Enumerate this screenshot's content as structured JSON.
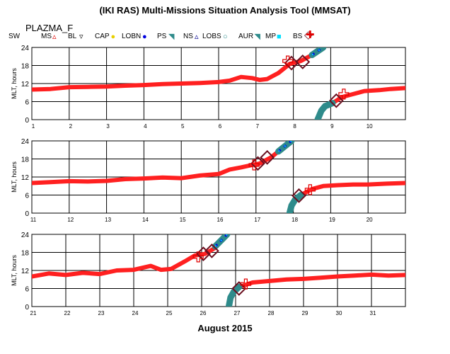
{
  "title": "(IKI RAS) Multi-Missions Situation Analysis Tool (MMSAT)",
  "mission": "PLAZMA_F",
  "xlabel": "August 2015",
  "legend": [
    {
      "label": "SW",
      "icon": "none",
      "color": "#000000"
    },
    {
      "label": "MS",
      "icon": "triangle-icon",
      "color": "#e00000"
    },
    {
      "label": "BL",
      "icon": "triangle-down-icon",
      "color": "#000000"
    },
    {
      "label": "CAP",
      "icon": "dot-icon",
      "color": "#e8d000"
    },
    {
      "label": "LOBN",
      "icon": "dot-icon",
      "color": "#0000e0"
    },
    {
      "label": "PS",
      "icon": "flag-icon",
      "color": "#2e8b8b"
    },
    {
      "label": "NS",
      "icon": "triangle-icon",
      "color": "#000090"
    },
    {
      "label": "LOBS",
      "icon": "circle-icon",
      "color": "#2e8b8b"
    },
    {
      "label": "AUR",
      "icon": "flag-icon",
      "color": "#2e8b8b"
    },
    {
      "label": "MP",
      "icon": "square-icon",
      "color": "#00e0ff"
    },
    {
      "label": "BS",
      "icon": "diamond-icon",
      "color": "#6b1020"
    },
    {
      "label": "",
      "icon": "cross-icon",
      "color": "#e00000"
    }
  ],
  "colors": {
    "sw": "#ff2020",
    "ps": "#2e8b8b",
    "lobn": "#0000e0",
    "mp": "#00e0ff",
    "bs": "#6b1020",
    "cross": "#e00000"
  },
  "chart_data": [
    {
      "type": "scatter",
      "xlim": [
        1,
        11
      ],
      "ylim": [
        0,
        24
      ],
      "ylabel": "MLT, hours",
      "xticks": [
        "1",
        "2",
        "3",
        "4",
        "5",
        "6",
        "7",
        "8",
        "9",
        "10"
      ],
      "yticks": [
        "0",
        "6",
        "12",
        "18",
        "24"
      ],
      "sw_track": [
        [
          1,
          10
        ],
        [
          1.5,
          10.2
        ],
        [
          2,
          10.8
        ],
        [
          2.5,
          10.9
        ],
        [
          3,
          11
        ],
        [
          3.5,
          11.3
        ],
        [
          4,
          11.5
        ],
        [
          4.5,
          11.8
        ],
        [
          5,
          12
        ],
        [
          5.5,
          12.2
        ],
        [
          6,
          12.5
        ],
        [
          6.3,
          13
        ],
        [
          6.6,
          14.2
        ],
        [
          6.9,
          13.8
        ],
        [
          7.1,
          13.2
        ],
        [
          7.3,
          13.5
        ],
        [
          7.6,
          15.5
        ],
        [
          7.9,
          18.5
        ],
        [
          8.2,
          19.5
        ],
        [
          8.5,
          21.5
        ],
        [
          8.75,
          23.8
        ]
      ],
      "sw_track_2": [
        [
          9.05,
          5.5
        ],
        [
          9.3,
          7.5
        ],
        [
          9.6,
          8.5
        ],
        [
          9.9,
          9.5
        ],
        [
          10.3,
          9.8
        ],
        [
          10.6,
          10.2
        ],
        [
          11,
          10.5
        ]
      ],
      "ps_track": [
        [
          8.5,
          21.5
        ],
        [
          8.8,
          24
        ],
        [
          8.65,
          0
        ],
        [
          8.75,
          3
        ],
        [
          8.85,
          4.5
        ],
        [
          8.95,
          5
        ],
        [
          9.05,
          5.5
        ]
      ],
      "bs_crossings": [
        [
          7.95,
          18.8
        ],
        [
          8.25,
          19.2
        ],
        [
          9.15,
          6.3
        ]
      ],
      "bs_crosses": [
        [
          7.85,
          19.5
        ],
        [
          9.35,
          8.5
        ]
      ]
    },
    {
      "type": "scatter",
      "xlim": [
        11,
        21
      ],
      "ylim": [
        0,
        24
      ],
      "ylabel": "MLT, hours",
      "xticks": [
        "11",
        "12",
        "13",
        "14",
        "15",
        "16",
        "17",
        "18",
        "19",
        "20"
      ],
      "yticks": [
        "0",
        "6",
        "12",
        "18",
        "24"
      ],
      "sw_track": [
        [
          11,
          10
        ],
        [
          11.5,
          10.3
        ],
        [
          12,
          10.6
        ],
        [
          12.5,
          10.5
        ],
        [
          13,
          10.7
        ],
        [
          13.5,
          11.3
        ],
        [
          14,
          11.5
        ],
        [
          14.5,
          11.8
        ],
        [
          15,
          11.6
        ],
        [
          15.5,
          12.5
        ],
        [
          16,
          13
        ],
        [
          16.3,
          14.5
        ],
        [
          16.6,
          15.2
        ],
        [
          16.9,
          16
        ],
        [
          17.1,
          16.5
        ],
        [
          17.4,
          18.5
        ],
        [
          17.7,
          21.5
        ],
        [
          17.95,
          24
        ]
      ],
      "sw_track_2": [
        [
          18.2,
          6
        ],
        [
          18.5,
          8
        ],
        [
          18.8,
          9
        ],
        [
          19.2,
          9.3
        ],
        [
          19.6,
          9.5
        ],
        [
          20,
          9.5
        ],
        [
          20.5,
          9.8
        ],
        [
          21,
          10
        ]
      ],
      "ps_track": [
        [
          17.6,
          20.5
        ],
        [
          17.95,
          24
        ],
        [
          17.9,
          0
        ],
        [
          17.95,
          2.5
        ],
        [
          18.05,
          4.5
        ],
        [
          18.2,
          6
        ]
      ],
      "bs_crossings": [
        [
          17.05,
          16.5
        ],
        [
          17.3,
          18.5
        ],
        [
          18.15,
          5.8
        ]
      ],
      "bs_crosses": [
        [
          16.95,
          16
        ],
        [
          18.45,
          7.8
        ]
      ]
    },
    {
      "type": "scatter",
      "xlim": [
        21,
        32
      ],
      "ylim": [
        0,
        24
      ],
      "ylabel": "MLT, hours",
      "xticks": [
        "21",
        "22",
        "23",
        "24",
        "25",
        "26",
        "27",
        "28",
        "29",
        "30",
        "31"
      ],
      "yticks": [
        "0",
        "6",
        "12",
        "18",
        "24"
      ],
      "sw_track": [
        [
          21,
          10
        ],
        [
          21.5,
          11
        ],
        [
          22,
          10.5
        ],
        [
          22.5,
          11.2
        ],
        [
          23,
          10.8
        ],
        [
          23.5,
          12
        ],
        [
          24,
          12.2
        ],
        [
          24.5,
          13.5
        ],
        [
          24.8,
          12.2
        ],
        [
          25.1,
          12.5
        ],
        [
          25.5,
          15
        ],
        [
          25.8,
          17
        ],
        [
          26.1,
          17.5
        ],
        [
          26.4,
          19.5
        ],
        [
          26.6,
          22
        ],
        [
          26.75,
          24
        ]
      ],
      "sw_track_2": [
        [
          27.1,
          6.5
        ],
        [
          27.5,
          8
        ],
        [
          28,
          8.5
        ],
        [
          28.5,
          9
        ],
        [
          29,
          9.2
        ],
        [
          29.5,
          9.6
        ],
        [
          30,
          10
        ],
        [
          30.5,
          10.3
        ],
        [
          31,
          10.6
        ],
        [
          31.5,
          10.3
        ],
        [
          32,
          10.5
        ]
      ],
      "ps_track": [
        [
          26.4,
          20
        ],
        [
          26.75,
          24
        ],
        [
          26.8,
          0
        ],
        [
          26.85,
          3
        ],
        [
          26.95,
          5
        ],
        [
          27.1,
          6.5
        ]
      ],
      "bs_crossings": [
        [
          26.05,
          17.5
        ],
        [
          26.3,
          18.5
        ],
        [
          27.1,
          6
        ]
      ],
      "bs_crosses": [
        [
          25.9,
          16.5
        ],
        [
          27.3,
          7.5
        ]
      ]
    }
  ]
}
